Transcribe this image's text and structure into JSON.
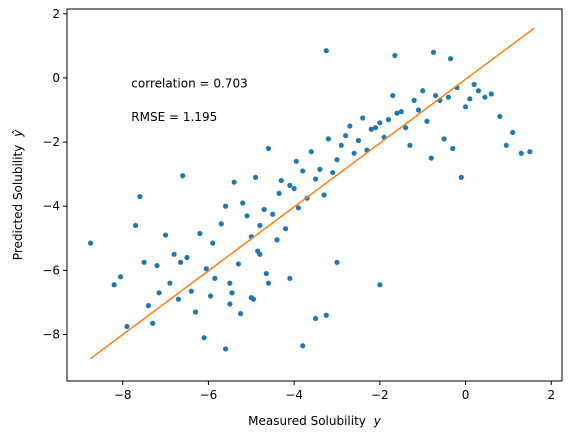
{
  "chart_data": {
    "type": "scatter",
    "xlabel": "Measured Solubility",
    "xlabel_var": "y",
    "ylabel": "Predicted Solubility",
    "ylabel_var": "ŷ",
    "xlim": [
      -9.3,
      2.25
    ],
    "ylim": [
      -9.45,
      2.15
    ],
    "xticks": [
      -8,
      -6,
      -4,
      -2,
      0,
      2
    ],
    "yticks": [
      -8,
      -6,
      -4,
      -2,
      0,
      2
    ],
    "grid": false,
    "annotations": [
      {
        "text": "correlation = 0.703",
        "x": -7.8,
        "y": -0.3
      },
      {
        "text": "RMSE = 1.195",
        "x": -7.8,
        "y": -1.35
      }
    ],
    "colors": {
      "points": "#1f77b4",
      "fit_line": "#ff7f0e"
    },
    "series": [
      {
        "kind": "points",
        "x": [
          -8.75,
          -8.2,
          -8.05,
          -7.9,
          -7.7,
          -7.6,
          -7.5,
          -7.4,
          -7.3,
          -7.2,
          -7.15,
          -7.0,
          -6.9,
          -6.8,
          -6.7,
          -6.65,
          -6.6,
          -6.5,
          -6.4,
          -6.3,
          -6.2,
          -6.1,
          -6.05,
          -5.95,
          -5.9,
          -5.85,
          -5.7,
          -5.6,
          -5.5,
          -5.45,
          -5.4,
          -5.3,
          -5.25,
          -5.2,
          -5.1,
          -5.0,
          -4.95,
          -4.9,
          -4.85,
          -4.8,
          -4.7,
          -4.65,
          -4.6,
          -4.5,
          -4.4,
          -4.35,
          -4.3,
          -4.2,
          -4.1,
          -4.0,
          -3.95,
          -3.9,
          -3.8,
          -3.7,
          -3.6,
          -3.5,
          -3.4,
          -3.3,
          -3.2,
          -3.1,
          -3.0,
          -2.9,
          -2.8,
          -2.7,
          -2.6,
          -2.5,
          -2.4,
          -2.3,
          -2.2,
          -2.1,
          -2.0,
          -1.9,
          -1.8,
          -1.7,
          -1.6,
          -1.5,
          -1.4,
          -1.3,
          -1.2,
          -1.1,
          -1.0,
          -0.9,
          -0.8,
          -0.7,
          -0.6,
          -0.5,
          -0.4,
          -0.3,
          -0.2,
          -0.1,
          0.0,
          0.1,
          0.2,
          0.3,
          0.45,
          0.6,
          0.8,
          0.95,
          1.1,
          1.3,
          1.5,
          -3.25,
          -3.25,
          -3.5,
          -3.8,
          -5.5,
          -5.6,
          -4.1,
          -2.0,
          -4.6,
          -5.0,
          -3.0,
          -4.8,
          -0.75,
          -0.35,
          -1.65
        ],
        "y": [
          -5.15,
          -6.45,
          -6.2,
          -7.75,
          -4.6,
          -3.7,
          -5.75,
          -7.1,
          -7.65,
          -5.85,
          -6.7,
          -4.9,
          -6.4,
          -5.5,
          -6.9,
          -5.75,
          -3.05,
          -5.6,
          -6.65,
          -7.3,
          -4.85,
          -8.1,
          -5.95,
          -6.8,
          -5.15,
          -6.25,
          -4.55,
          -4.0,
          -7.05,
          -6.7,
          -3.25,
          -5.8,
          -7.35,
          -3.9,
          -4.3,
          -4.95,
          -6.9,
          -3.1,
          -5.4,
          -4.6,
          -4.1,
          -6.1,
          -2.2,
          -4.25,
          -5.05,
          -3.6,
          -3.2,
          -4.7,
          -3.35,
          -3.45,
          -2.6,
          -4.05,
          -2.9,
          -3.75,
          -2.3,
          -3.15,
          -2.85,
          -3.65,
          -1.9,
          -2.95,
          -2.55,
          -2.1,
          -1.8,
          -1.5,
          -2.35,
          -1.95,
          -1.25,
          -2.25,
          -1.6,
          -1.55,
          -1.4,
          -1.85,
          -1.3,
          -0.55,
          -1.1,
          -1.05,
          -1.55,
          -2.1,
          -0.7,
          -1.0,
          -0.4,
          -1.35,
          -2.5,
          -0.55,
          -0.7,
          -1.9,
          -0.6,
          -2.2,
          -0.3,
          -3.1,
          -0.9,
          -0.65,
          -0.2,
          -0.4,
          -0.6,
          -0.5,
          -1.2,
          -2.1,
          -1.7,
          -2.35,
          -2.3,
          -7.4,
          0.85,
          -7.5,
          -8.35,
          -6.4,
          -8.45,
          -6.25,
          -6.45,
          -6.4,
          -6.85,
          -5.75,
          -5.5,
          0.8,
          0.6,
          0.7
        ]
      },
      {
        "kind": "line",
        "x": [
          -8.75,
          1.6
        ],
        "y": [
          -8.75,
          1.55
        ]
      }
    ]
  }
}
